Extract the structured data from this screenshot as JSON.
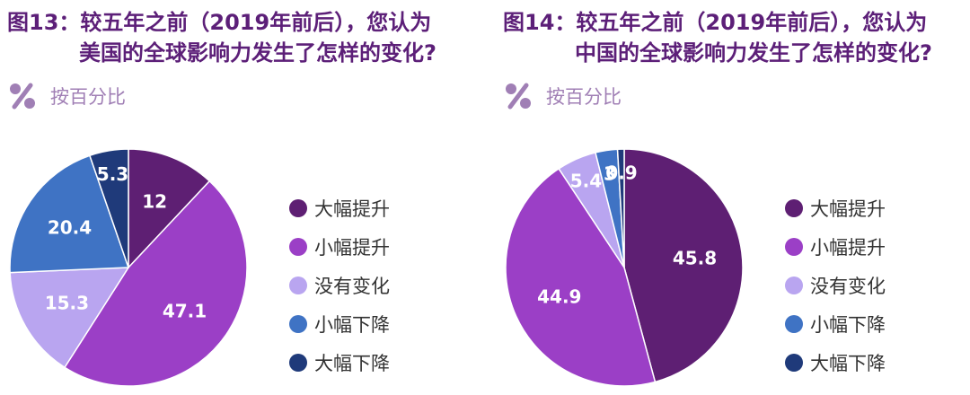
{
  "colors": {
    "title": "#5c1f78",
    "unit": "#a07fb5",
    "series": [
      "#5e1f73",
      "#9b3fc6",
      "#b9a5f0",
      "#3f73c4",
      "#1f3a7a"
    ]
  },
  "legend": [
    "大幅提升",
    "小幅提升",
    "没有变化",
    "小幅下降",
    "大幅下降"
  ],
  "chart_data": [
    {
      "type": "pie",
      "title_line1": "图13：较五年之前（2019年前后），您认为",
      "title_line2": "美国的全球影响力发生了怎样的变化?",
      "unit_label": "按百分比",
      "categories": [
        "大幅提升",
        "小幅提升",
        "没有变化",
        "小幅下降",
        "大幅下降"
      ],
      "values": [
        12,
        47.1,
        15.3,
        20.4,
        5.3
      ],
      "data_labels": [
        "12",
        "47.1",
        "15.3",
        "20.4",
        "5.3"
      ]
    },
    {
      "type": "pie",
      "title_line1": "图14：较五年之前（2019年前后），您认为",
      "title_line2": "中国的全球影响力发生了怎样的变化?",
      "unit_label": "按百分比",
      "categories": [
        "大幅提升",
        "小幅提升",
        "没有变化",
        "小幅下降",
        "大幅下降"
      ],
      "values": [
        45.8,
        44.9,
        5.4,
        3,
        0.9
      ],
      "data_labels": [
        "45.8",
        "44.9",
        "5.4",
        "3",
        "0.9"
      ]
    }
  ]
}
